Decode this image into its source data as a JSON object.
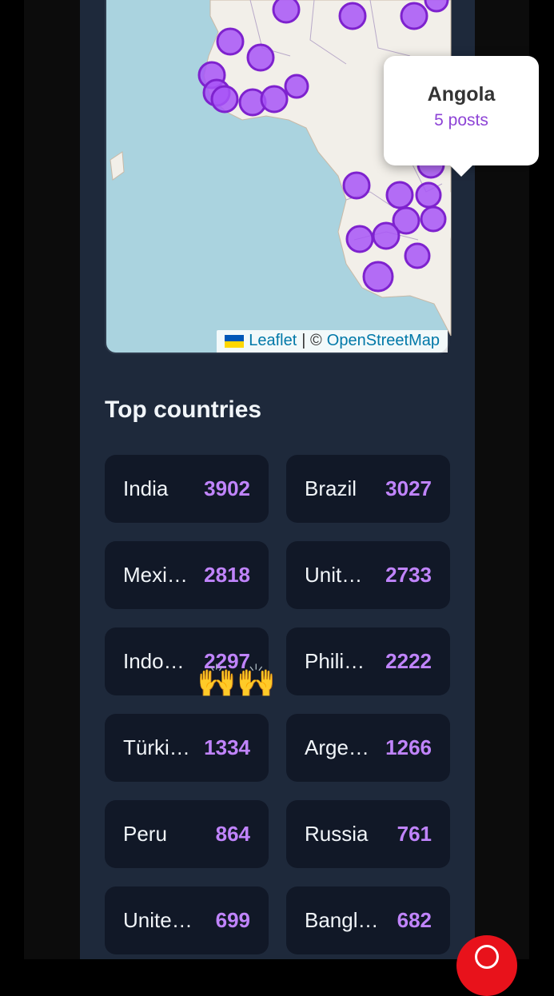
{
  "map": {
    "popup": {
      "country": "Angola",
      "posts": "5 posts"
    },
    "attribution": {
      "leaflet": "Leaflet",
      "separator": "| ©",
      "osm": "OpenStreetMap"
    },
    "colors": {
      "water": "#aad3df",
      "land": "#f2efe9",
      "marker_fill": "#a855f7",
      "marker_stroke": "#7e22ce"
    }
  },
  "top_countries": {
    "title": "Top countries",
    "items": [
      {
        "name": "India",
        "count": "3902"
      },
      {
        "name": "Brazil",
        "count": "3027"
      },
      {
        "name": "Mexi…",
        "count": "2818"
      },
      {
        "name": "Unit…",
        "count": "2733"
      },
      {
        "name": "Indo…",
        "count": "2297"
      },
      {
        "name": "Phili…",
        "count": "2222"
      },
      {
        "name": "Türki…",
        "count": "1334"
      },
      {
        "name": "Arge…",
        "count": "1266"
      },
      {
        "name": "Peru",
        "count": "864"
      },
      {
        "name": "Russia",
        "count": "761"
      },
      {
        "name": "Unite…",
        "count": "699"
      },
      {
        "name": "Bangl…",
        "count": "682"
      }
    ]
  },
  "overlay_emoji": "🙌🙌"
}
